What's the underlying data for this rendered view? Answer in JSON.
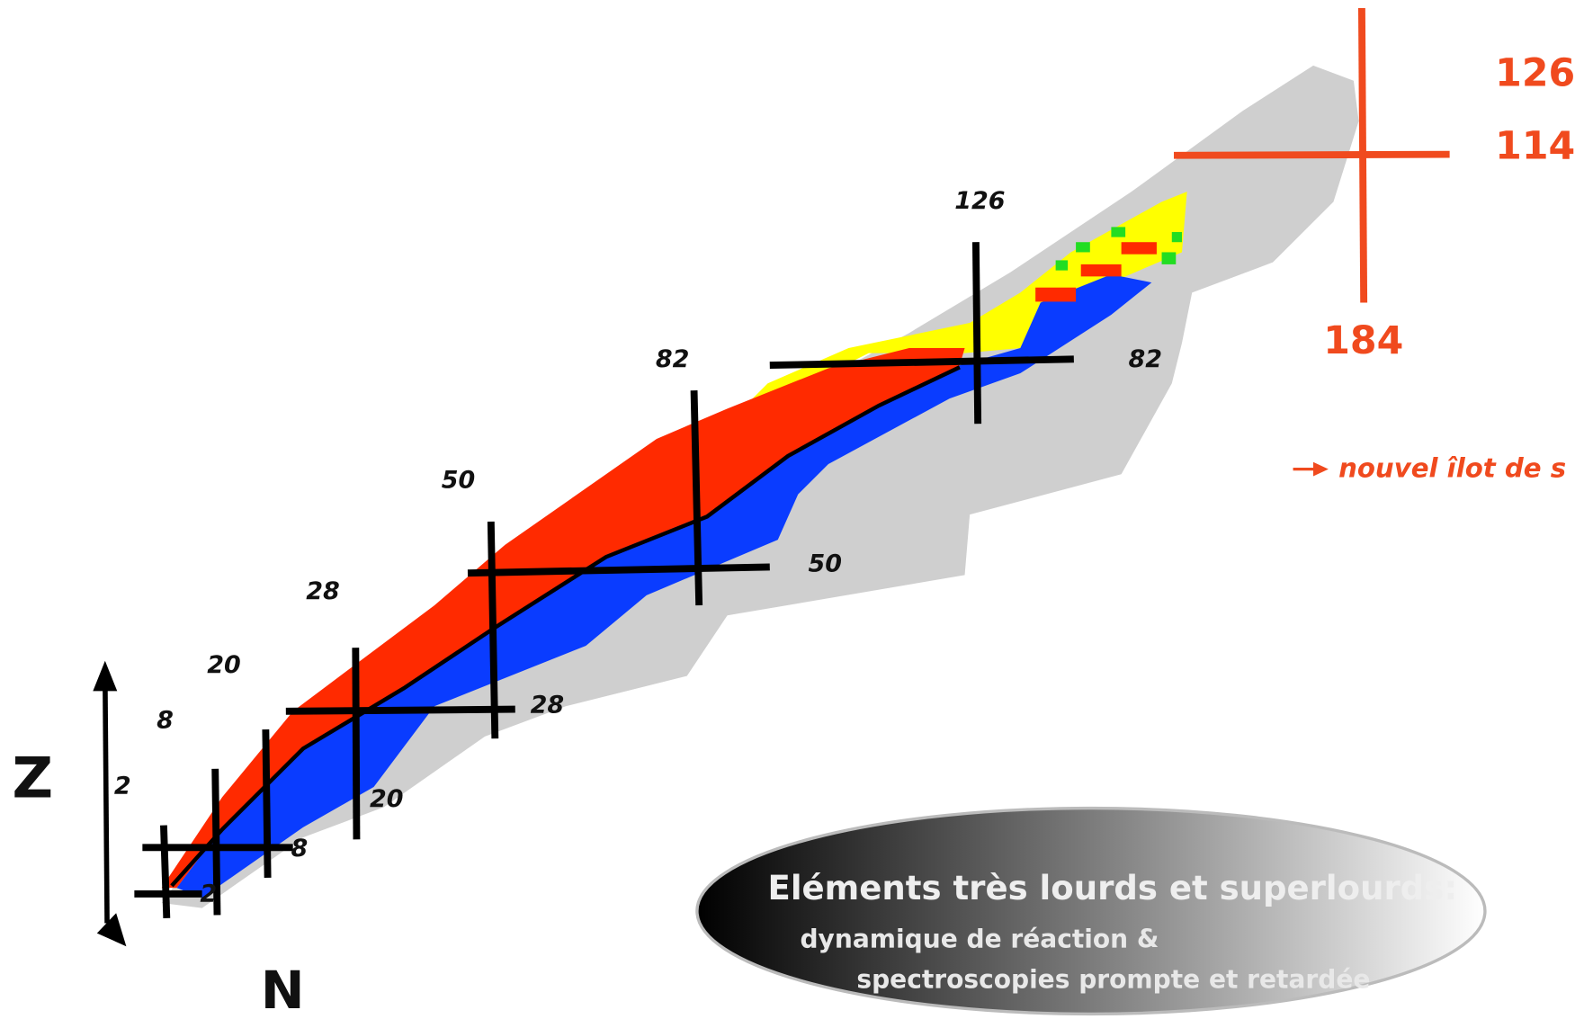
{
  "axes": {
    "z_label": "Z",
    "n_label": "N"
  },
  "labels_left": [
    "2",
    "8",
    "20",
    "28",
    "50",
    "82",
    "126"
  ],
  "labels_right": [
    "2",
    "8",
    "20",
    "28",
    "50",
    "82"
  ],
  "superheavy": {
    "proton_labels": [
      "126",
      "114"
    ],
    "neutron_label": "184",
    "note": "nouvel îlot de s"
  },
  "banner": {
    "title": "Eléments très lourds et  superlourds:",
    "lines": [
      "dynamique de réaction &",
      "spectroscopies prompte et retardée"
    ]
  }
}
